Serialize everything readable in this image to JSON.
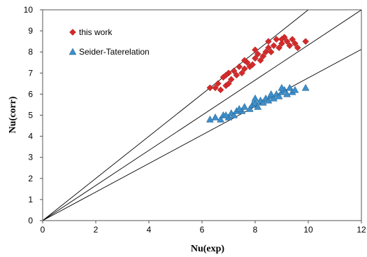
{
  "chart_data": {
    "type": "scatter",
    "xlabel": "Nu(exp)",
    "ylabel": "Nu(corr)",
    "xlim": [
      0,
      12
    ],
    "ylim": [
      0,
      10
    ],
    "xticks": [
      0,
      2,
      4,
      6,
      8,
      10,
      12
    ],
    "yticks": [
      0,
      1,
      2,
      3,
      4,
      5,
      6,
      7,
      8,
      9,
      10
    ],
    "grid": false,
    "legend_position": "top-left",
    "reference_lines": [
      {
        "slope": 0.677
      },
      {
        "slope": 0.833
      },
      {
        "slope": 1.0
      }
    ],
    "series": [
      {
        "name": "this work",
        "marker": "diamond",
        "color": "#d42a2a",
        "points": [
          [
            6.3,
            6.3
          ],
          [
            6.5,
            6.3
          ],
          [
            6.7,
            6.2
          ],
          [
            6.6,
            6.5
          ],
          [
            6.9,
            6.4
          ],
          [
            7.0,
            6.5
          ],
          [
            6.8,
            6.8
          ],
          [
            7.1,
            6.7
          ],
          [
            7.0,
            7.0
          ],
          [
            7.3,
            6.9
          ],
          [
            7.2,
            7.1
          ],
          [
            7.5,
            7.0
          ],
          [
            7.4,
            7.3
          ],
          [
            7.6,
            7.2
          ],
          [
            7.8,
            7.3
          ],
          [
            7.7,
            7.5
          ],
          [
            7.9,
            7.4
          ],
          [
            8.0,
            7.7
          ],
          [
            8.2,
            7.6
          ],
          [
            8.1,
            7.9
          ],
          [
            8.3,
            7.8
          ],
          [
            8.4,
            8.0
          ],
          [
            8.5,
            8.2
          ],
          [
            8.6,
            8.0
          ],
          [
            8.7,
            8.3
          ],
          [
            8.9,
            8.2
          ],
          [
            9.0,
            8.4
          ],
          [
            8.8,
            8.6
          ],
          [
            9.2,
            8.5
          ],
          [
            9.1,
            8.7
          ],
          [
            9.3,
            8.3
          ],
          [
            9.4,
            8.6
          ],
          [
            9.5,
            8.4
          ],
          [
            9.6,
            8.2
          ],
          [
            9.9,
            8.5
          ],
          [
            6.9,
            6.9
          ],
          [
            7.6,
            7.6
          ],
          [
            8.0,
            8.1
          ],
          [
            8.5,
            8.5
          ],
          [
            9.0,
            8.6
          ]
        ]
      },
      {
        "name": "Seider-Taterelation",
        "marker": "triangle",
        "color": "#3d8ec9",
        "points": [
          [
            6.3,
            4.8
          ],
          [
            6.5,
            4.9
          ],
          [
            6.7,
            4.8
          ],
          [
            6.8,
            5.0
          ],
          [
            7.0,
            4.9
          ],
          [
            7.1,
            5.1
          ],
          [
            7.2,
            5.0
          ],
          [
            7.3,
            5.2
          ],
          [
            7.5,
            5.2
          ],
          [
            7.6,
            5.4
          ],
          [
            7.8,
            5.3
          ],
          [
            7.9,
            5.5
          ],
          [
            8.0,
            5.6
          ],
          [
            8.1,
            5.4
          ],
          [
            8.2,
            5.7
          ],
          [
            8.3,
            5.6
          ],
          [
            8.4,
            5.8
          ],
          [
            8.5,
            5.7
          ],
          [
            8.6,
            5.9
          ],
          [
            8.7,
            5.8
          ],
          [
            8.8,
            6.0
          ],
          [
            8.9,
            5.9
          ],
          [
            9.0,
            6.1
          ],
          [
            9.1,
            6.2
          ],
          [
            9.2,
            6.0
          ],
          [
            9.3,
            6.3
          ],
          [
            9.4,
            6.1
          ],
          [
            9.5,
            6.2
          ],
          [
            9.9,
            6.3
          ],
          [
            6.9,
            5.0
          ],
          [
            7.4,
            5.3
          ],
          [
            8.0,
            5.8
          ],
          [
            8.6,
            6.0
          ],
          [
            9.0,
            6.3
          ]
        ]
      }
    ]
  }
}
